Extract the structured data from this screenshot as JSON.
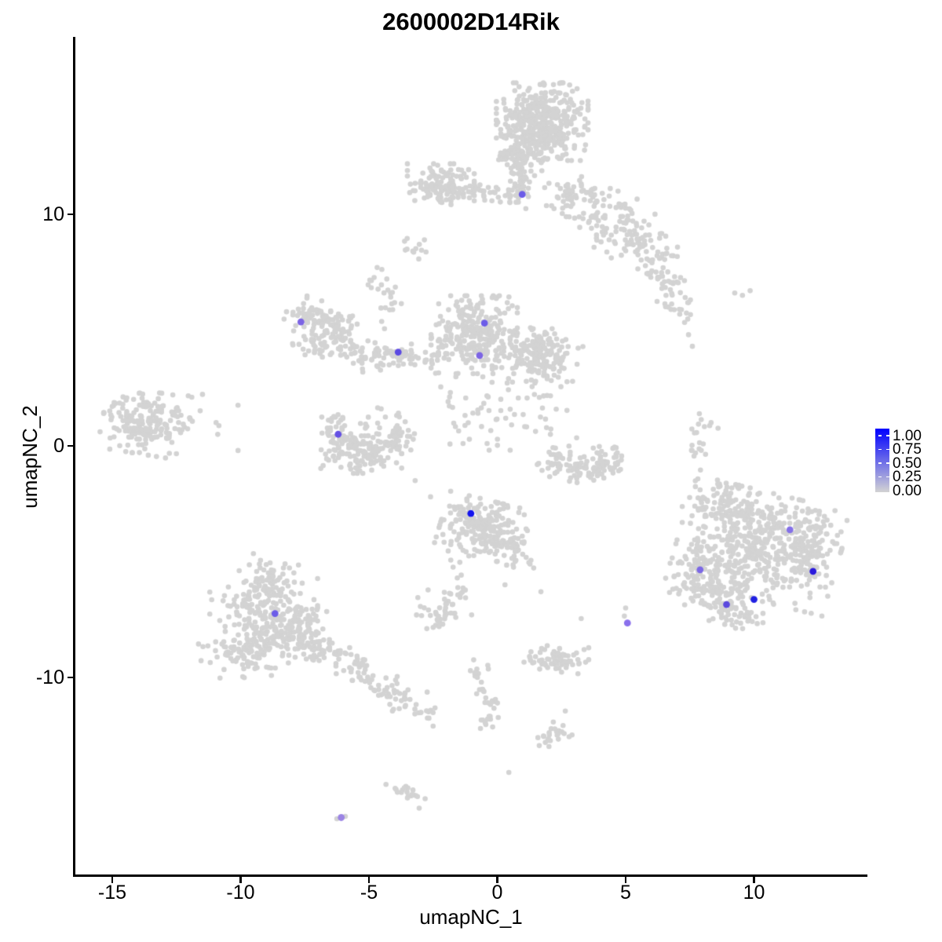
{
  "title": "2600002D14Rik",
  "axes": {
    "x": {
      "label": "umapNC_1",
      "ticks": [
        -15,
        -10,
        -5,
        0,
        5,
        10
      ],
      "range": [
        -16.4,
        14.4
      ]
    },
    "y": {
      "label": "umapNC_2",
      "ticks": [
        10,
        0,
        -10
      ],
      "range": [
        -18.6,
        17.7
      ]
    }
  },
  "legend": {
    "labels": [
      "1.00",
      "0.75",
      "0.50",
      "0.25",
      "0.00"
    ],
    "high_color": "#0000FF",
    "low_color": "#D3D3D3"
  },
  "chart_data": {
    "type": "scatter",
    "title": "2600002D14Rik",
    "xlabel": "umapNC_1",
    "ylabel": "umapNC_2",
    "xlim": [
      -16.4,
      14.4
    ],
    "ylim": [
      -18.6,
      17.7
    ],
    "grid": false,
    "legend_position": "right",
    "background_point_color": "#D3D3D3",
    "description": "UMAP feature plot: grey background cells summarized as gaussian clusters [n, cx, cy, sx, sy, rot_deg]; expressing cells colored lightgrey-to-blue by value 0-1.",
    "cluster_fields": [
      "n",
      "cx",
      "cy",
      "sx",
      "sy",
      "rot_deg"
    ],
    "clusters": [
      [
        420,
        1.75,
        14.0,
        0.85,
        0.8,
        0
      ],
      [
        70,
        1.0,
        12.6,
        0.45,
        0.45,
        0
      ],
      [
        55,
        0.85,
        11.4,
        0.22,
        0.55,
        0
      ],
      [
        110,
        -2.2,
        11.3,
        0.62,
        0.42,
        0
      ],
      [
        55,
        -1.1,
        10.95,
        1.1,
        0.2,
        0
      ],
      [
        12,
        -3.0,
        8.65,
        0.28,
        0.33,
        -40
      ],
      [
        45,
        3.0,
        10.8,
        0.55,
        0.5,
        0
      ],
      [
        85,
        4.3,
        9.8,
        0.85,
        0.6,
        -25
      ],
      [
        55,
        5.6,
        8.7,
        0.8,
        0.45,
        -20
      ],
      [
        40,
        6.5,
        7.2,
        0.65,
        0.3,
        -45
      ],
      [
        16,
        7.0,
        5.9,
        0.4,
        0.25,
        -30
      ],
      [
        60,
        -7.2,
        5.5,
        0.5,
        0.4,
        -20
      ],
      [
        45,
        -6.3,
        5.2,
        0.4,
        0.45,
        0
      ],
      [
        35,
        -6.8,
        4.4,
        0.55,
        0.28,
        10
      ],
      [
        22,
        -5.4,
        3.9,
        0.5,
        0.3,
        -30
      ],
      [
        80,
        -4.2,
        3.95,
        0.9,
        0.26,
        -5
      ],
      [
        270,
        -0.9,
        4.8,
        0.8,
        0.8,
        0
      ],
      [
        15,
        -4.2,
        6.1,
        0.2,
        0.5,
        -20
      ],
      [
        10,
        -4.75,
        7.2,
        0.22,
        0.3,
        -30
      ],
      [
        190,
        1.6,
        3.9,
        0.75,
        0.6,
        -15
      ],
      [
        55,
        -0.4,
        1.6,
        0.9,
        0.85,
        0
      ],
      [
        45,
        -6.25,
        0.5,
        0.3,
        0.55,
        15
      ],
      [
        85,
        -5.3,
        -0.45,
        0.75,
        0.35,
        0
      ],
      [
        65,
        -4.2,
        0.3,
        0.45,
        0.6,
        -20
      ],
      [
        25,
        -5.3,
        0.4,
        0.5,
        0.4,
        0
      ],
      [
        190,
        -13.7,
        1.0,
        0.8,
        0.65,
        -10
      ],
      [
        8,
        -11.4,
        1.3,
        0.7,
        0.6,
        0
      ],
      [
        215,
        -0.55,
        -3.6,
        0.8,
        0.6,
        -15
      ],
      [
        40,
        0.55,
        -4.5,
        0.55,
        0.35,
        -35
      ],
      [
        13,
        -1.5,
        -5.6,
        0.12,
        0.6,
        15
      ],
      [
        42,
        -2.3,
        -7.1,
        0.42,
        0.42,
        0
      ],
      [
        55,
        -8.9,
        -5.7,
        0.55,
        0.5,
        0
      ],
      [
        165,
        -9.1,
        -7.2,
        1.0,
        0.7,
        0
      ],
      [
        135,
        -9.3,
        -8.8,
        1.1,
        0.55,
        5
      ],
      [
        75,
        -7.8,
        -7.9,
        0.6,
        0.6,
        0
      ],
      [
        32,
        -6.6,
        -8.9,
        0.5,
        0.28,
        -30
      ],
      [
        42,
        -5.3,
        -9.7,
        0.65,
        0.3,
        -30
      ],
      [
        40,
        -4.0,
        -10.7,
        0.6,
        0.33,
        -30
      ],
      [
        12,
        -2.9,
        -11.5,
        0.3,
        0.2,
        -30
      ],
      [
        9,
        -0.85,
        -9.5,
        0.12,
        0.35,
        10
      ],
      [
        11,
        -0.55,
        -10.4,
        0.14,
        0.45,
        -10
      ],
      [
        11,
        -0.3,
        -11.3,
        0.18,
        0.4,
        10
      ],
      [
        7,
        -0.5,
        -11.95,
        0.2,
        0.18,
        0
      ],
      [
        70,
        2.3,
        -9.3,
        0.6,
        0.32,
        0
      ],
      [
        24,
        2.2,
        -12.6,
        0.3,
        0.3,
        -20
      ],
      [
        20,
        -3.45,
        -15.0,
        0.45,
        0.14,
        -35
      ],
      [
        470,
        10.2,
        -4.3,
        1.5,
        1.1,
        -15
      ],
      [
        85,
        9.0,
        -2.6,
        0.8,
        0.5,
        -20
      ],
      [
        85,
        12.2,
        -4.3,
        0.5,
        0.8,
        0
      ],
      [
        110,
        8.4,
        -6.4,
        0.8,
        0.55,
        -20
      ],
      [
        45,
        7.9,
        -5.2,
        0.32,
        0.6,
        0
      ],
      [
        38,
        9.3,
        -7.3,
        0.5,
        0.3,
        0
      ],
      [
        15,
        7.75,
        0.1,
        0.14,
        0.55,
        8
      ],
      [
        6,
        8.1,
        0.95,
        0.25,
        0.15,
        -30
      ],
      [
        26,
        2.35,
        -0.55,
        0.4,
        0.3,
        20
      ],
      [
        55,
        3.3,
        -1.0,
        0.6,
        0.28,
        0
      ],
      [
        38,
        4.25,
        -0.6,
        0.4,
        0.3,
        -25
      ],
      [
        18,
        2.1,
        1.4,
        0.5,
        0.85,
        0
      ]
    ],
    "singles": [
      [
        9.25,
        6.6
      ],
      [
        9.55,
        6.5
      ],
      [
        9.85,
        6.7
      ],
      [
        7.45,
        4.8
      ],
      [
        7.6,
        4.3
      ],
      [
        -10.1,
        -0.2
      ],
      [
        -11.9,
        2.1
      ],
      [
        3.27,
        -7.46
      ],
      [
        5.0,
        -7.0
      ],
      [
        4.95,
        -7.35
      ],
      [
        -1.0,
        -7.3
      ],
      [
        0.45,
        -14.1
      ],
      [
        -6.25,
        -16.1
      ],
      [
        -5.92,
        -16.0
      ],
      [
        7.9,
        -1.9
      ],
      [
        0.3,
        -6.0
      ],
      [
        1.7,
        -6.3
      ],
      [
        2.65,
        -11.45
      ],
      [
        -2.5,
        -12.1
      ],
      [
        -3.2,
        -1.5
      ],
      [
        -2.6,
        -2.2
      ]
    ],
    "expressing_cells": [
      {
        "x": 0.97,
        "y": 10.86,
        "value": 0.55,
        "color": "#6C5CE8"
      },
      {
        "x": -7.65,
        "y": 5.35,
        "value": 0.5,
        "color": "#7C64E4"
      },
      {
        "x": -0.5,
        "y": 5.3,
        "value": 0.55,
        "color": "#6C5CE8"
      },
      {
        "x": -3.86,
        "y": 4.05,
        "value": 0.62,
        "color": "#5B49E2"
      },
      {
        "x": -0.69,
        "y": 3.9,
        "value": 0.5,
        "color": "#7C64E4"
      },
      {
        "x": -6.2,
        "y": 0.5,
        "value": 0.58,
        "color": "#6450E4"
      },
      {
        "x": -1.03,
        "y": -2.92,
        "value": 0.97,
        "color": "#1414EE"
      },
      {
        "x": -8.66,
        "y": -7.24,
        "value": 0.55,
        "color": "#6C5CE8"
      },
      {
        "x": 7.9,
        "y": -5.35,
        "value": 0.5,
        "color": "#7C68E6"
      },
      {
        "x": 11.4,
        "y": -3.62,
        "value": 0.47,
        "color": "#8470E8"
      },
      {
        "x": 12.3,
        "y": -5.42,
        "value": 0.9,
        "color": "#2A1ADC"
      },
      {
        "x": 8.93,
        "y": -6.85,
        "value": 0.62,
        "color": "#5B49DE"
      },
      {
        "x": 10.0,
        "y": -6.63,
        "value": 0.88,
        "color": "#2020E2"
      },
      {
        "x": 5.07,
        "y": -7.65,
        "value": 0.45,
        "color": "#8A70EC"
      },
      {
        "x": -6.08,
        "y": -16.05,
        "value": 0.38,
        "color": "#9B84E4"
      }
    ]
  }
}
